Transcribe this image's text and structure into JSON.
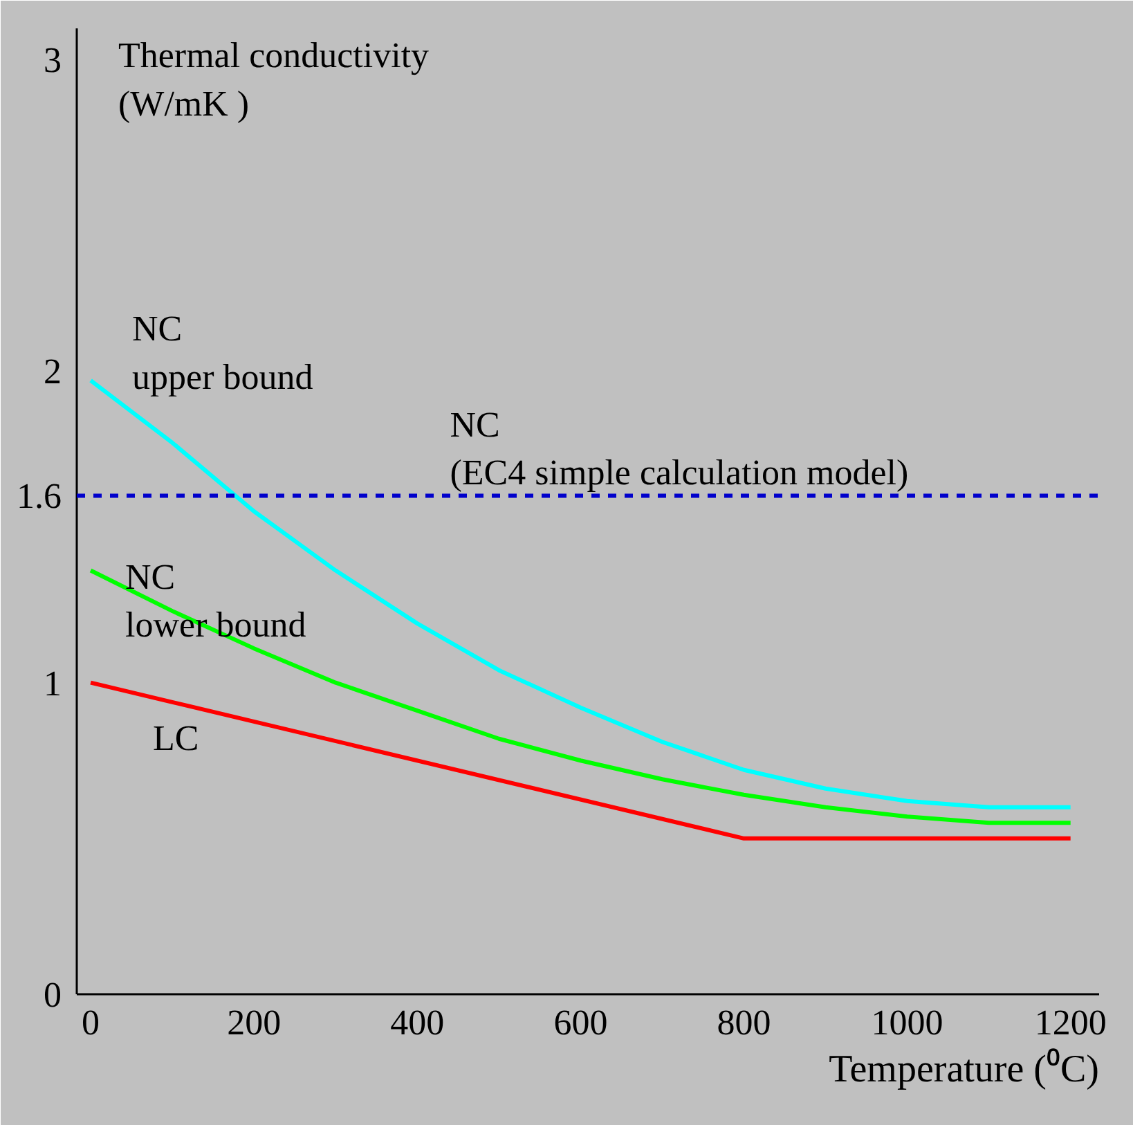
{
  "chart_data": {
    "type": "line",
    "ylabel": "Thermal conductivity\n(W/mK )",
    "xlabel": "Temperature (⁰C)",
    "x": [
      0,
      100,
      200,
      300,
      400,
      500,
      600,
      700,
      800,
      900,
      1000,
      1100,
      1200
    ],
    "series": [
      {
        "name": "NC\nupper bound",
        "color": "#00ffff",
        "values": [
          1.97,
          1.77,
          1.55,
          1.36,
          1.19,
          1.04,
          0.92,
          0.81,
          0.72,
          0.66,
          0.62,
          0.6,
          0.6
        ]
      },
      {
        "name": "NC\nlower bound",
        "color": "#00ff00",
        "values": [
          1.36,
          1.23,
          1.11,
          1.0,
          0.91,
          0.82,
          0.75,
          0.69,
          0.64,
          0.6,
          0.57,
          0.55,
          0.55
        ]
      },
      {
        "name": "LC",
        "color": "#ff0000",
        "x": [
          0,
          800,
          1200
        ],
        "values": [
          1.0,
          0.5,
          0.5
        ]
      }
    ],
    "ref_lines": [
      {
        "axis": "y",
        "value": 1.6,
        "label": "NC\n(EC4 simple calculation model)",
        "color": "#0000cc",
        "line_style": "dashed"
      }
    ],
    "xlim": [
      -17,
      1235
    ],
    "ylim": [
      0,
      3.1
    ],
    "xticks": [
      0,
      200,
      400,
      600,
      800,
      1000,
      1200
    ],
    "yticks": [
      0,
      1,
      1.6,
      2,
      3
    ],
    "grid": false,
    "legend": false,
    "marker": "none",
    "line_style": "solid"
  }
}
